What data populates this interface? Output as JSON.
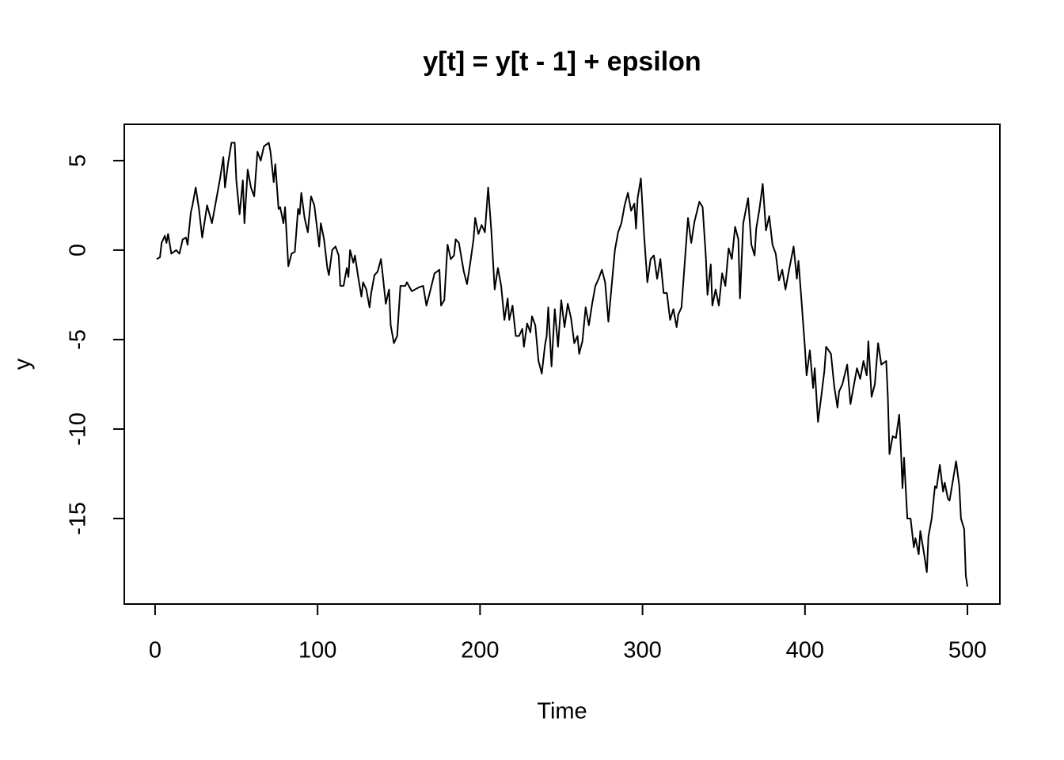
{
  "chart_data": {
    "type": "line",
    "title": "y[t] = y[t - 1] + epsilon",
    "xlabel": "Time",
    "ylabel": "y",
    "color": "#000000",
    "x": [
      1,
      3,
      4,
      6,
      7,
      8,
      10,
      13,
      15,
      17,
      19,
      20,
      22,
      23,
      25,
      27,
      29,
      32,
      35,
      36,
      40,
      42,
      43,
      45,
      47,
      49,
      50,
      52,
      54,
      55,
      57,
      59,
      61,
      63,
      65,
      67,
      70,
      71,
      73,
      74,
      76,
      77,
      79,
      80,
      82,
      84,
      86,
      88,
      89,
      90,
      92,
      94,
      96,
      98,
      100,
      101,
      102,
      104,
      106,
      107,
      109,
      111,
      113,
      114,
      116,
      118,
      119,
      120,
      122,
      123,
      125,
      127,
      128,
      130,
      132,
      133,
      135,
      137,
      139,
      140,
      142,
      144,
      145,
      147,
      149,
      151,
      154,
      155,
      158,
      160,
      162,
      165,
      167,
      169,
      172,
      175,
      176,
      178,
      180,
      182,
      184,
      185,
      187,
      190,
      192,
      194,
      196,
      197,
      199,
      201,
      203,
      205,
      207,
      209,
      211,
      213,
      215,
      217,
      218,
      220,
      222,
      224,
      226,
      227,
      229,
      231,
      232,
      234,
      236,
      238,
      240,
      241,
      242,
      244,
      246,
      248,
      250,
      252,
      254,
      256,
      258,
      260,
      261,
      263,
      265,
      267,
      269,
      271,
      273,
      275,
      277,
      279,
      281,
      283,
      285,
      287,
      289,
      291,
      293,
      295,
      296,
      297,
      299,
      301,
      303,
      305,
      307,
      309,
      311,
      313,
      315,
      317,
      319,
      321,
      322,
      324,
      326,
      328,
      330,
      332,
      335,
      337,
      339,
      340,
      342,
      343,
      345,
      347,
      349,
      351,
      353,
      355,
      357,
      359,
      360,
      362,
      365,
      367,
      369,
      370,
      372,
      374,
      376,
      378,
      380,
      382,
      384,
      386,
      388,
      390,
      393,
      395,
      396,
      398,
      400,
      401,
      403,
      405,
      406,
      408,
      410,
      412,
      413,
      416,
      418,
      420,
      421,
      423,
      426,
      428,
      430,
      432,
      434,
      436,
      438,
      439,
      441,
      443,
      445,
      447,
      450,
      451,
      452,
      454,
      456,
      458,
      459,
      460,
      461,
      463,
      465,
      467,
      468,
      470,
      471,
      473,
      475,
      476,
      478,
      480,
      481,
      483,
      485,
      486,
      488,
      489,
      491,
      493,
      495,
      496,
      498,
      499,
      500
    ],
    "y": [
      -0.5,
      -0.4,
      0.4,
      0.8,
      0.4,
      0.9,
      -0.2,
      0,
      -0.2,
      0.6,
      0.7,
      0.3,
      2.1,
      2.5,
      3.5,
      2.3,
      0.7,
      2.5,
      1.5,
      2.0,
      4.0,
      5.2,
      3.5,
      4.9,
      6.0,
      6.0,
      3.9,
      2.0,
      3.9,
      1.5,
      4.5,
      3.5,
      3.0,
      5.5,
      5.0,
      5.8,
      6.0,
      5.5,
      3.8,
      4.8,
      2.3,
      2.4,
      1.5,
      2.4,
      -0.9,
      -0.2,
      -0.1,
      2.3,
      2.0,
      3.2,
      1.8,
      1.0,
      3.0,
      2.5,
      1.0,
      0.2,
      1.5,
      0.6,
      -1.0,
      -1.4,
      0.0,
      0.2,
      -0.3,
      -2.0,
      -2.0,
      -1.0,
      -1.5,
      0.0,
      -0.7,
      -0.3,
      -1.5,
      -2.6,
      -1.8,
      -2.2,
      -3.2,
      -2.4,
      -1.4,
      -1.2,
      -0.5,
      -1.3,
      -3.0,
      -2.2,
      -4.2,
      -5.2,
      -4.8,
      -2.0,
      -2.0,
      -1.8,
      -2.3,
      -2.2,
      -2.1,
      -2.0,
      -3.1,
      -2.4,
      -1.3,
      -1.1,
      -3.1,
      -2.8,
      0.3,
      -0.5,
      -0.3,
      0.6,
      0.4,
      -1.2,
      -1.9,
      -0.7,
      0.6,
      1.8,
      0.9,
      1.4,
      1.0,
      3.5,
      1.0,
      -2.2,
      -1.0,
      -2.0,
      -3.9,
      -2.7,
      -3.9,
      -3.1,
      -4.8,
      -4.8,
      -4.4,
      -5.4,
      -4.1,
      -4.6,
      -3.7,
      -4.2,
      -6.2,
      -6.9,
      -5.3,
      -4.8,
      -3.2,
      -6.5,
      -3.3,
      -5.4,
      -2.8,
      -4.3,
      -3.0,
      -3.8,
      -5.2,
      -4.8,
      -5.8,
      -5.1,
      -3.2,
      -4.2,
      -3.0,
      -2.0,
      -1.6,
      -1.1,
      -1.8,
      -4.0,
      -2.0,
      0.0,
      1.0,
      1.5,
      2.5,
      3.2,
      2.2,
      2.6,
      1.2,
      2.9,
      4.0,
      0.8,
      -1.8,
      -0.5,
      -0.3,
      -1.6,
      -0.5,
      -2.4,
      -2.4,
      -3.9,
      -3.3,
      -4.3,
      -3.6,
      -3.2,
      -0.7,
      1.8,
      0.4,
      1.6,
      2.7,
      2.4,
      -0.4,
      -2.5,
      -0.8,
      -3.1,
      -2.2,
      -3.1,
      -1.3,
      -2.0,
      0.1,
      -0.5,
      1.3,
      0.6,
      -2.7,
      1.5,
      2.9,
      0.3,
      -0.3,
      1.2,
      2.3,
      3.7,
      1.1,
      1.9,
      0.3,
      -0.2,
      -1.7,
      -1.1,
      -2.2,
      -1.2,
      0.2,
      -1.6,
      -0.6,
      -3.0,
      -5.5,
      -7.0,
      -5.6,
      -7.7,
      -6.6,
      -9.6,
      -8.2,
      -6.7,
      -5.4,
      -5.8,
      -7.6,
      -8.8,
      -7.9,
      -7.5,
      -6.4,
      -8.6,
      -7.6,
      -6.6,
      -7.2,
      -6.2,
      -7.0,
      -5.1,
      -8.2,
      -7.5,
      -5.2,
      -6.4,
      -6.2,
      -8.2,
      -11.4,
      -10.4,
      -10.5,
      -9.2,
      -11.0,
      -13.3,
      -11.6,
      -15.0,
      -15.0,
      -16.6,
      -16.1,
      -17.0,
      -15.7,
      -16.8,
      -18.0,
      -16.0,
      -15.0,
      -13.2,
      -13.3,
      -12.0,
      -13.5,
      -13.0,
      -13.9,
      -14.0,
      -12.9,
      -11.8,
      -13.2,
      -15.0,
      -15.6,
      -18.2,
      -18.8
    ],
    "xlim": [
      -18.96,
      519.96
    ],
    "ylim": [
      -19.78,
      7.03
    ],
    "xticks": [
      0,
      100,
      200,
      300,
      400,
      500
    ],
    "yticks": [
      -15,
      -10,
      -5,
      0,
      5
    ]
  }
}
